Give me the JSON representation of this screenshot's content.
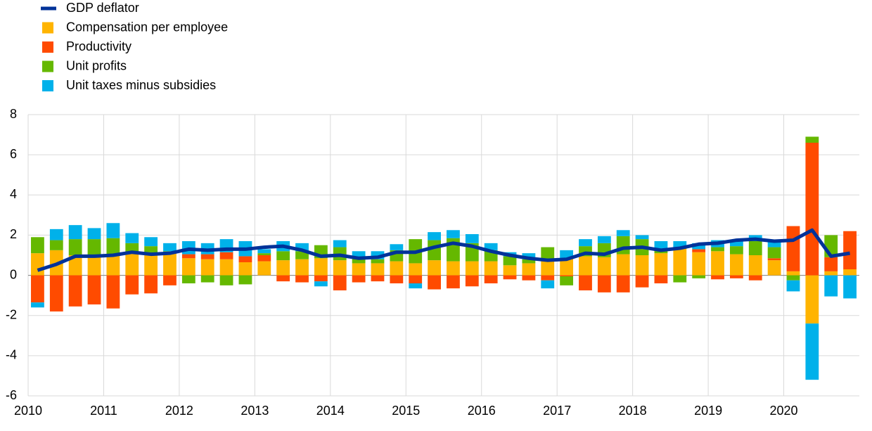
{
  "chart_data": {
    "type": "bar",
    "stacked": true,
    "grid": true,
    "legend": "upper-left",
    "categories": [
      "2010",
      null,
      null,
      null,
      "2011",
      null,
      null,
      null,
      "2012",
      null,
      null,
      null,
      "2013",
      null,
      null,
      null,
      "2014",
      null,
      null,
      null,
      "2015",
      null,
      null,
      null,
      "2016",
      null,
      null,
      null,
      "2017",
      null,
      null,
      null,
      "2018",
      null,
      null,
      null,
      "2019",
      null,
      null,
      null,
      "2020",
      null,
      null,
      null
    ],
    "ylim": [
      -6,
      8
    ],
    "yticks": [
      -6,
      -4,
      -2,
      0,
      2,
      4,
      6,
      8
    ],
    "series": [
      {
        "name": "GDP deflator",
        "type": "line",
        "color": "#003299",
        "values": [
          0.25,
          0.55,
          0.95,
          0.95,
          1.0,
          1.15,
          1.05,
          1.1,
          1.3,
          1.25,
          1.3,
          1.3,
          1.4,
          1.45,
          1.25,
          0.95,
          1.0,
          0.85,
          0.9,
          1.15,
          1.15,
          1.4,
          1.6,
          1.45,
          1.2,
          1.0,
          0.85,
          0.75,
          0.8,
          1.1,
          1.05,
          1.35,
          1.4,
          1.25,
          1.35,
          1.55,
          1.6,
          1.75,
          1.8,
          1.7,
          1.75,
          2.25,
          0.95,
          1.1
        ]
      },
      {
        "name": "Compensation per employee",
        "color": "#ffb400",
        "values": [
          1.1,
          1.25,
          1.0,
          1.0,
          1.0,
          1.1,
          1.0,
          1.1,
          0.85,
          0.8,
          0.8,
          0.65,
          0.7,
          0.75,
          0.8,
          0.85,
          0.75,
          0.6,
          0.6,
          0.7,
          0.6,
          0.75,
          0.7,
          0.7,
          0.7,
          0.5,
          0.6,
          0.7,
          0.85,
          0.95,
          0.9,
          1.05,
          1.0,
          1.1,
          1.35,
          1.15,
          1.2,
          1.05,
          1.0,
          0.75,
          0.2,
          -2.4,
          0.2,
          0.3
        ]
      },
      {
        "name": "Productivity",
        "color": "#ff4b00",
        "values": [
          -1.35,
          -1.8,
          -1.55,
          -1.45,
          -1.65,
          -0.95,
          -0.9,
          -0.5,
          0.2,
          0.25,
          0.35,
          0.3,
          0.3,
          -0.3,
          -0.35,
          -0.3,
          -0.75,
          -0.35,
          -0.3,
          -0.4,
          -0.4,
          -0.7,
          -0.65,
          -0.55,
          -0.4,
          -0.2,
          -0.25,
          -0.25,
          -0.05,
          -0.75,
          -0.85,
          -0.85,
          -0.6,
          -0.4,
          0.0,
          0.15,
          -0.2,
          -0.15,
          -0.25,
          0.1,
          2.25,
          6.6,
          0.7,
          1.9
        ]
      },
      {
        "name": "Unit profits",
        "color": "#65b800",
        "values": [
          0.8,
          0.5,
          0.8,
          0.8,
          0.85,
          0.5,
          0.45,
          0.1,
          -0.4,
          -0.35,
          -0.5,
          -0.45,
          0.1,
          0.45,
          0.4,
          0.65,
          0.65,
          0.25,
          0.2,
          0.55,
          1.2,
          1.0,
          1.15,
          0.9,
          0.55,
          0.45,
          0.2,
          0.7,
          -0.45,
          0.5,
          0.7,
          0.9,
          0.8,
          0.2,
          -0.35,
          -0.15,
          0.2,
          0.4,
          0.7,
          0.55,
          -0.25,
          0.3,
          1.1,
          0.0
        ]
      },
      {
        "name": "Unit taxes minus subsidies",
        "color": "#00b1ea",
        "values": [
          -0.25,
          0.55,
          0.7,
          0.55,
          0.75,
          0.5,
          0.45,
          0.4,
          0.65,
          0.55,
          0.65,
          0.75,
          0.2,
          0.5,
          0.4,
          -0.25,
          0.35,
          0.35,
          0.4,
          0.3,
          -0.25,
          0.4,
          0.4,
          0.45,
          0.35,
          0.2,
          0.3,
          -0.4,
          0.4,
          0.35,
          0.35,
          0.3,
          0.2,
          0.4,
          0.35,
          0.3,
          0.35,
          0.3,
          0.3,
          0.3,
          -0.55,
          -2.8,
          -1.05,
          -1.15
        ]
      }
    ]
  }
}
